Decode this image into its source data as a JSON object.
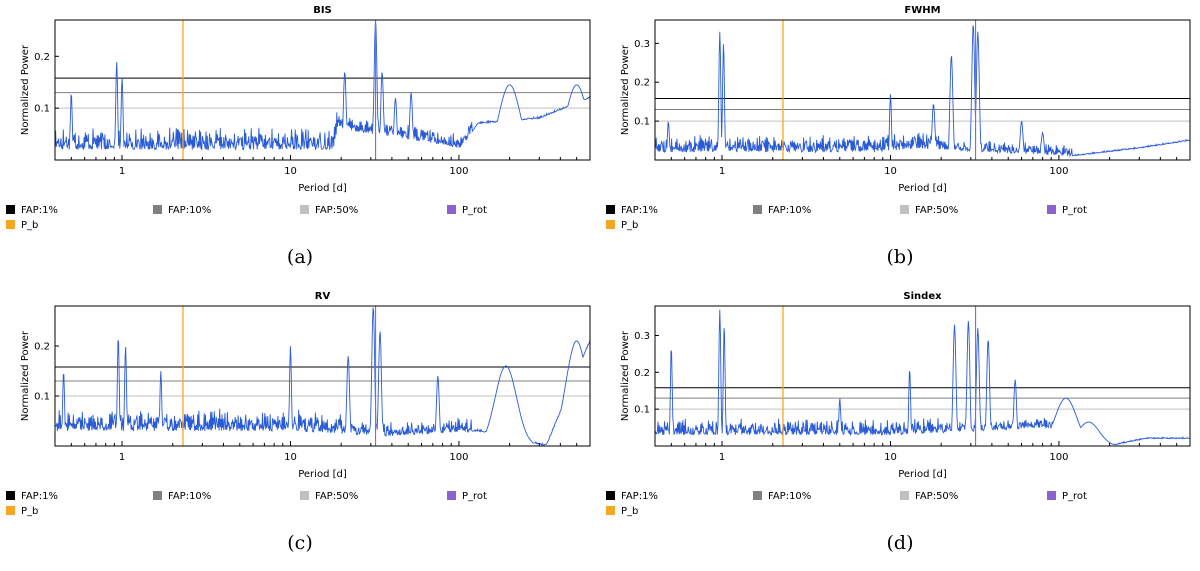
{
  "legend": {
    "fap1": "FAP:1%",
    "fap10": "FAP:10%",
    "fap50": "FAP:50%",
    "prot": "P_rot",
    "pb": "P_b",
    "colors": {
      "fap1": "#000000",
      "fap10": "#808080",
      "fap50": "#c0c0c0",
      "prot": "#8a63d2",
      "pb": "#f5a623"
    }
  },
  "captions": [
    "(a)",
    "(b)",
    "(c)",
    "(d)"
  ],
  "chart_data": [
    {
      "type": "line",
      "title": "BIS",
      "xlabel": "Period [d]",
      "ylabel": "Normalized Power",
      "x_scale": "log",
      "xlim": [
        0.4,
        600
      ],
      "ylim": [
        0,
        0.27
      ],
      "xticks": [
        1,
        10,
        100
      ],
      "yticks": [
        0.1,
        0.2
      ],
      "ytick_labels": [
        "0.1",
        "0.2"
      ],
      "fap_levels": {
        "fap1": 0.158,
        "fap10": 0.13,
        "fap50": 0.1
      },
      "p_b": 2.3,
      "p_rot": 32,
      "peaks": [
        [
          0.5,
          0.13
        ],
        [
          0.93,
          0.19
        ],
        [
          1.0,
          0.16
        ],
        [
          21,
          0.17
        ],
        [
          32,
          0.27
        ],
        [
          35,
          0.17
        ],
        [
          42,
          0.12
        ],
        [
          52,
          0.13
        ],
        [
          200,
          0.145
        ],
        [
          500,
          0.145
        ]
      ],
      "floor": [
        [
          0.4,
          0.02
        ],
        [
          18,
          0.02
        ],
        [
          19,
          0.06
        ],
        [
          80,
          0.03
        ],
        [
          100,
          0.02
        ],
        [
          130,
          0.07
        ],
        [
          300,
          0.08
        ],
        [
          600,
          0.12
        ]
      ]
    },
    {
      "type": "line",
      "title": "FWHM",
      "xlabel": "Period [d]",
      "ylabel": "Normalized Power",
      "x_scale": "log",
      "xlim": [
        0.4,
        600
      ],
      "ylim": [
        0,
        0.36
      ],
      "xticks": [
        1,
        10,
        100
      ],
      "yticks": [
        0.1,
        0.2,
        0.3
      ],
      "ytick_labels": [
        "0.1",
        "0.2",
        "0.3"
      ],
      "fap_levels": {
        "fap1": 0.158,
        "fap10": 0.13,
        "fap50": 0.1
      },
      "p_b": 2.3,
      "p_rot": 32,
      "peaks": [
        [
          0.48,
          0.1
        ],
        [
          0.97,
          0.33
        ],
        [
          1.02,
          0.3
        ],
        [
          10,
          0.17
        ],
        [
          18,
          0.145
        ],
        [
          23,
          0.27
        ],
        [
          31,
          0.35
        ],
        [
          33,
          0.33
        ],
        [
          60,
          0.1
        ],
        [
          80,
          0.07
        ]
      ],
      "floor": [
        [
          0.4,
          0.02
        ],
        [
          9,
          0.02
        ],
        [
          14,
          0.03
        ],
        [
          40,
          0.02
        ],
        [
          120,
          0.01
        ],
        [
          300,
          0.03
        ],
        [
          600,
          0.05
        ]
      ]
    },
    {
      "type": "line",
      "title": "RV",
      "xlabel": "Period [d]",
      "ylabel": "Normalized Power",
      "x_scale": "log",
      "xlim": [
        0.4,
        600
      ],
      "ylim": [
        0,
        0.28
      ],
      "xticks": [
        1,
        10,
        100
      ],
      "yticks": [
        0.1,
        0.2
      ],
      "ytick_labels": [
        "0.1",
        "0.2"
      ],
      "fap_levels": {
        "fap1": 0.158,
        "fap10": 0.13,
        "fap50": 0.1
      },
      "p_b": 2.3,
      "p_rot": 32,
      "peaks": [
        [
          0.45,
          0.15
        ],
        [
          0.95,
          0.22
        ],
        [
          1.05,
          0.2
        ],
        [
          1.7,
          0.15
        ],
        [
          10,
          0.2
        ],
        [
          22,
          0.18
        ],
        [
          31,
          0.28
        ],
        [
          34,
          0.23
        ],
        [
          75,
          0.14
        ],
        [
          190,
          0.16
        ],
        [
          500,
          0.21
        ]
      ],
      "floor": [
        [
          0.4,
          0.03
        ],
        [
          9,
          0.03
        ],
        [
          40,
          0.02
        ],
        [
          130,
          0.03
        ],
        [
          330,
          0.0
        ],
        [
          600,
          0.21
        ]
      ]
    },
    {
      "type": "line",
      "title": "Sindex",
      "xlabel": "Period [d]",
      "ylabel": "Normalized Power",
      "x_scale": "log",
      "xlim": [
        0.4,
        600
      ],
      "ylim": [
        0,
        0.38
      ],
      "xticks": [
        1,
        10,
        100
      ],
      "yticks": [
        0.1,
        0.2,
        0.3
      ],
      "ytick_labels": [
        "0.1",
        "0.2",
        "0.3"
      ],
      "fap_levels": {
        "fap1": 0.158,
        "fap10": 0.13,
        "fap50": 0.1
      },
      "p_b": 2.3,
      "p_rot": 32,
      "peaks": [
        [
          0.5,
          0.27
        ],
        [
          0.97,
          0.37
        ],
        [
          1.03,
          0.33
        ],
        [
          5,
          0.13
        ],
        [
          13,
          0.21
        ],
        [
          24,
          0.33
        ],
        [
          29,
          0.34
        ],
        [
          33,
          0.32
        ],
        [
          38,
          0.29
        ],
        [
          55,
          0.18
        ],
        [
          110,
          0.13
        ],
        [
          150,
          0.065
        ]
      ],
      "floor": [
        [
          0.4,
          0.03
        ],
        [
          11,
          0.03
        ],
        [
          80,
          0.05
        ],
        [
          200,
          0.0
        ],
        [
          330,
          0.02
        ],
        [
          600,
          0.02
        ]
      ]
    }
  ]
}
